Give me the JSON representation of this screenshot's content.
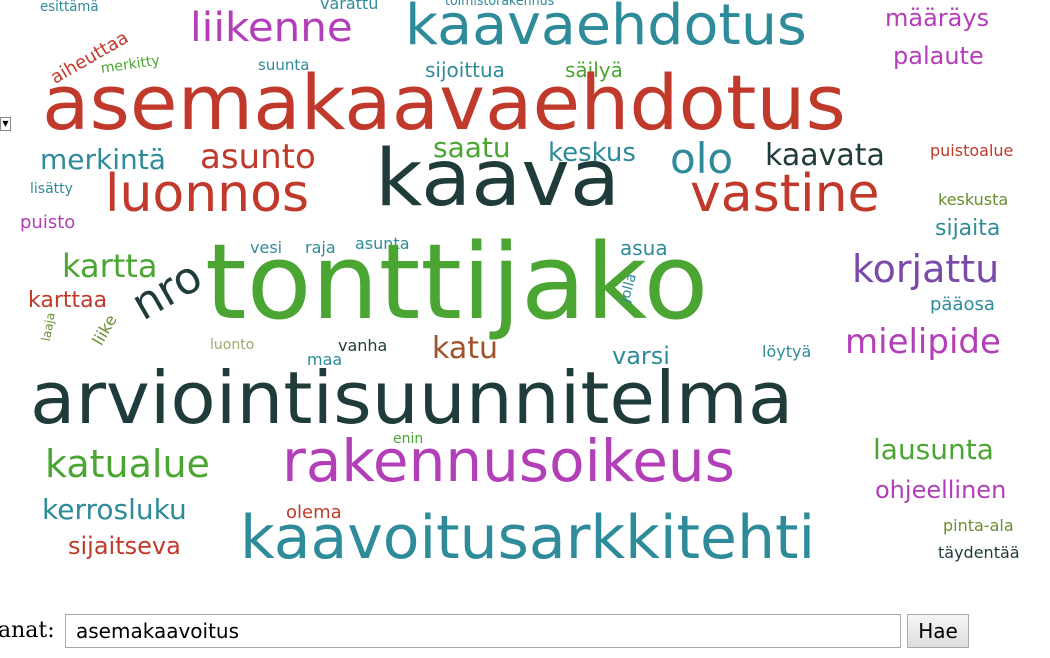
{
  "colors": {
    "red": "#c0392b",
    "teal": "#2e8b9a",
    "purple": "#b33fb8",
    "green": "#4aa532",
    "dark": "#1f3b3a",
    "olive": "#6a8d2f",
    "grey_green": "#9aaa6e",
    "brown": "#a0522d"
  },
  "cloud": {
    "words": [
      {
        "text": "esittämä",
        "color": "#2e8b9a",
        "size": 14
      },
      {
        "text": "aiheuttaa",
        "color": "#c0392b",
        "size": 18
      },
      {
        "text": "merkitty",
        "color": "#4aa532",
        "size": 14
      },
      {
        "text": "liikenne",
        "color": "#b33fb8",
        "size": 40
      },
      {
        "text": "varattu",
        "color": "#2e8b9a",
        "size": 16
      },
      {
        "text": "toimistorakennus",
        "color": "#2e8b9a",
        "size": 14
      },
      {
        "text": "kaavaehdotus",
        "color": "#2e8b9a",
        "size": 56
      },
      {
        "text": "määräys",
        "color": "#b33fb8",
        "size": 24
      },
      {
        "text": "suunta",
        "color": "#2e8b9a",
        "size": 15
      },
      {
        "text": "sijoittua",
        "color": "#2e8b9a",
        "size": 20
      },
      {
        "text": "säilyä",
        "color": "#4aa532",
        "size": 20
      },
      {
        "text": "palaute",
        "color": "#b33fb8",
        "size": 24
      },
      {
        "text": "asemakaavaehdotus",
        "color": "#c0392b",
        "size": 76
      },
      {
        "text": "merkintä",
        "color": "#2e8b9a",
        "size": 28
      },
      {
        "text": "asunto",
        "color": "#c0392b",
        "size": 34
      },
      {
        "text": "saatu",
        "color": "#4aa532",
        "size": 28
      },
      {
        "text": "keskus",
        "color": "#2e8b9a",
        "size": 26
      },
      {
        "text": "olo",
        "color": "#2e8b9a",
        "size": 42
      },
      {
        "text": "kaavata",
        "color": "#1f3b3a",
        "size": 30
      },
      {
        "text": "puistoalue",
        "color": "#c0392b",
        "size": 16
      },
      {
        "text": "lisätty",
        "color": "#2e8b9a",
        "size": 14
      },
      {
        "text": "luonnos",
        "color": "#c0392b",
        "size": 52
      },
      {
        "text": "kaava",
        "color": "#1f3b3a",
        "size": 78
      },
      {
        "text": "vastine",
        "color": "#c0392b",
        "size": 52
      },
      {
        "text": "keskusta",
        "color": "#6a8d2f",
        "size": 16
      },
      {
        "text": "puisto",
        "color": "#b33fb8",
        "size": 18
      },
      {
        "text": "sijaita",
        "color": "#2e8b9a",
        "size": 22
      },
      {
        "text": "vesi",
        "color": "#2e8b9a",
        "size": 16
      },
      {
        "text": "raja",
        "color": "#2e8b9a",
        "size": 16
      },
      {
        "text": "asunta",
        "color": "#2e8b9a",
        "size": 16
      },
      {
        "text": "asua",
        "color": "#2e8b9a",
        "size": 20
      },
      {
        "text": "kartta",
        "color": "#4aa532",
        "size": 32
      },
      {
        "text": "tonttijako",
        "color": "#4aa532",
        "size": 104
      },
      {
        "text": "korjattu",
        "color": "#7a4aa8",
        "size": 38
      },
      {
        "text": "karttaa",
        "color": "#c0392b",
        "size": 22
      },
      {
        "text": "nro",
        "color": "#1f3b3a",
        "size": 44
      },
      {
        "text": "jolla",
        "color": "#2e8b9a",
        "size": 14
      },
      {
        "text": "pääosa",
        "color": "#2e8b9a",
        "size": 18
      },
      {
        "text": "laaja",
        "color": "#6a8d2f",
        "size": 12
      },
      {
        "text": "liike",
        "color": "#6a8d2f",
        "size": 16
      },
      {
        "text": "luonto",
        "color": "#9aaa6e",
        "size": 14
      },
      {
        "text": "vanha",
        "color": "#1f3b3a",
        "size": 16
      },
      {
        "text": "katu",
        "color": "#a0522d",
        "size": 30
      },
      {
        "text": "varsi",
        "color": "#2e8b9a",
        "size": 24
      },
      {
        "text": "löytyä",
        "color": "#2e8b9a",
        "size": 16
      },
      {
        "text": "mielipide",
        "color": "#b33fb8",
        "size": 34
      },
      {
        "text": "maa",
        "color": "#2e8b9a",
        "size": 16
      },
      {
        "text": "arviointisuunnitelma",
        "color": "#1f3b3a",
        "size": 72
      },
      {
        "text": "enin",
        "color": "#4aa532",
        "size": 14
      },
      {
        "text": "katualue",
        "color": "#4aa532",
        "size": 38
      },
      {
        "text": "rakennusoikeus",
        "color": "#b33fb8",
        "size": 58
      },
      {
        "text": "lausunta",
        "color": "#4aa532",
        "size": 28
      },
      {
        "text": "ohjeellinen",
        "color": "#b33fb8",
        "size": 24
      },
      {
        "text": "kerrosluku",
        "color": "#2e8b9a",
        "size": 28
      },
      {
        "text": "olema",
        "color": "#c0392b",
        "size": 18
      },
      {
        "text": "pinta-ala",
        "color": "#6a8d2f",
        "size": 16
      },
      {
        "text": "sijaitseva",
        "color": "#c0392b",
        "size": 24
      },
      {
        "text": "kaavoitusarkkitehti",
        "color": "#2e8b9a",
        "size": 60
      },
      {
        "text": "täydentää",
        "color": "#1f3b3a",
        "size": 16
      }
    ]
  },
  "search": {
    "label": "anat:",
    "value": "asemakaavoitus",
    "button_label": "Hae"
  },
  "dropdown": {
    "arrow": "▼"
  }
}
